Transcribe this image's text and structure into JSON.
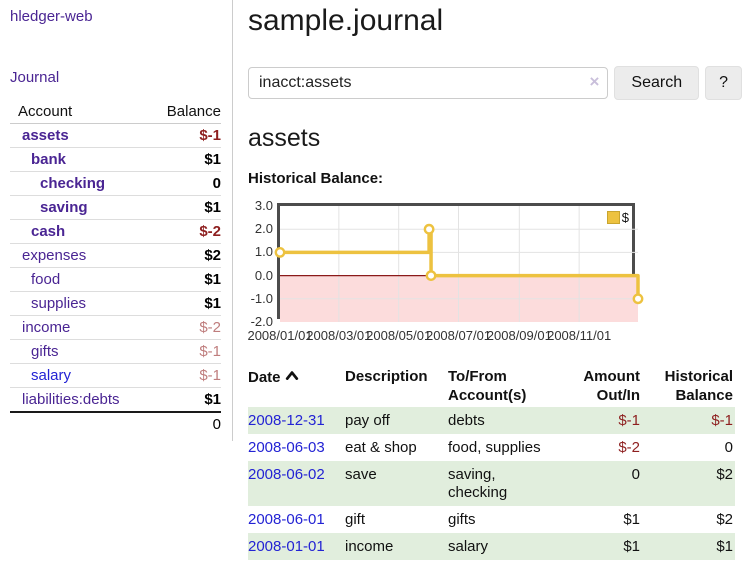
{
  "app": {
    "brand": "hledger-web",
    "nav_journal": "Journal"
  },
  "sidebar": {
    "header": {
      "account": "Account",
      "balance": "Balance"
    },
    "accounts": [
      {
        "name": "assets",
        "balance": "$-1"
      },
      {
        "name": "bank",
        "balance": "$1"
      },
      {
        "name": "checking",
        "balance": "0"
      },
      {
        "name": "saving",
        "balance": "$1"
      },
      {
        "name": "cash",
        "balance": "$-2"
      },
      {
        "name": "expenses",
        "balance": "$2"
      },
      {
        "name": "food",
        "balance": "$1"
      },
      {
        "name": "supplies",
        "balance": "$1"
      },
      {
        "name": "income",
        "balance": "$-2"
      },
      {
        "name": "gifts",
        "balance": "$-1"
      },
      {
        "name": "salary",
        "balance": "$-1"
      },
      {
        "name": "liabilities:debts",
        "balance": "$1"
      }
    ],
    "total": "0"
  },
  "header": {
    "title": "sample.journal"
  },
  "search": {
    "value": "inacct:assets",
    "button_label": "Search",
    "help_label": "?"
  },
  "icons": {
    "clear": "×",
    "sort": "chevron-up"
  },
  "account_page": {
    "title": "assets",
    "chart_heading": "Historical Balance:"
  },
  "chart_data": {
    "type": "line",
    "step": true,
    "title": "Historical Balance:",
    "series": [
      {
        "name": "$",
        "color": "#edc240",
        "points": [
          {
            "date": "2008/01/01",
            "day": 0,
            "value": 1
          },
          {
            "date": "2008/06/01",
            "day": 152,
            "value": 2
          },
          {
            "date": "2008/06/03",
            "day": 154,
            "value": 0
          },
          {
            "date": "2008/12/31",
            "day": 365,
            "value": -1
          }
        ]
      }
    ],
    "x_ticks": [
      {
        "label": "2008/01/01",
        "day": 0
      },
      {
        "label": "2008/03/01",
        "day": 60
      },
      {
        "label": "2008/05/01",
        "day": 121
      },
      {
        "label": "2008/07/01",
        "day": 182
      },
      {
        "label": "2008/09/01",
        "day": 244
      },
      {
        "label": "2008/11/01",
        "day": 305
      }
    ],
    "x_total_days": 365,
    "y_ticks": [
      3,
      2,
      1,
      0,
      -1,
      -2
    ],
    "ylim": [
      -2,
      3
    ],
    "grid": true,
    "legend": {
      "position": "top-right",
      "label": "$"
    },
    "zero_line_color": "#8b1a1a",
    "negative_fill_color": "#fcdcdc"
  },
  "register": {
    "headers": {
      "date": "Date",
      "description": "Description",
      "tofrom_line1": "To/From",
      "tofrom_line2": "Account(s)",
      "amount_line1": "Amount",
      "amount_line2": "Out/In",
      "historical_line1": "Historical",
      "historical_line2": "Balance"
    },
    "rows": [
      {
        "date": "2008-12-31",
        "description": "pay off",
        "accounts": "debts",
        "amount": "$-1",
        "balance": "$-1"
      },
      {
        "date": "2008-06-03",
        "description": "eat & shop",
        "accounts": "food, supplies",
        "amount": "$-2",
        "balance": "0"
      },
      {
        "date": "2008-06-02",
        "description": "save",
        "accounts": "saving, checking",
        "amount": "0",
        "balance": "$2"
      },
      {
        "date": "2008-06-01",
        "description": "gift",
        "accounts": "gifts",
        "amount": "$1",
        "balance": "$2"
      },
      {
        "date": "2008-01-01",
        "description": "income",
        "accounts": "salary",
        "amount": "$1",
        "balance": "$1"
      }
    ]
  },
  "colors": {
    "link_purple": "#4a2593",
    "link_blue": "#2323d4",
    "negative_strong": "#8e1f1f",
    "negative_muted": "#bf7d7d",
    "row_highlight_green": "#e1eedd",
    "chart_series_gold": "#edc240",
    "chart_negative_fill": "#fcdcdc",
    "chart_zero_line": "#8b1a1a",
    "chart_border": "#4c4c4c"
  }
}
